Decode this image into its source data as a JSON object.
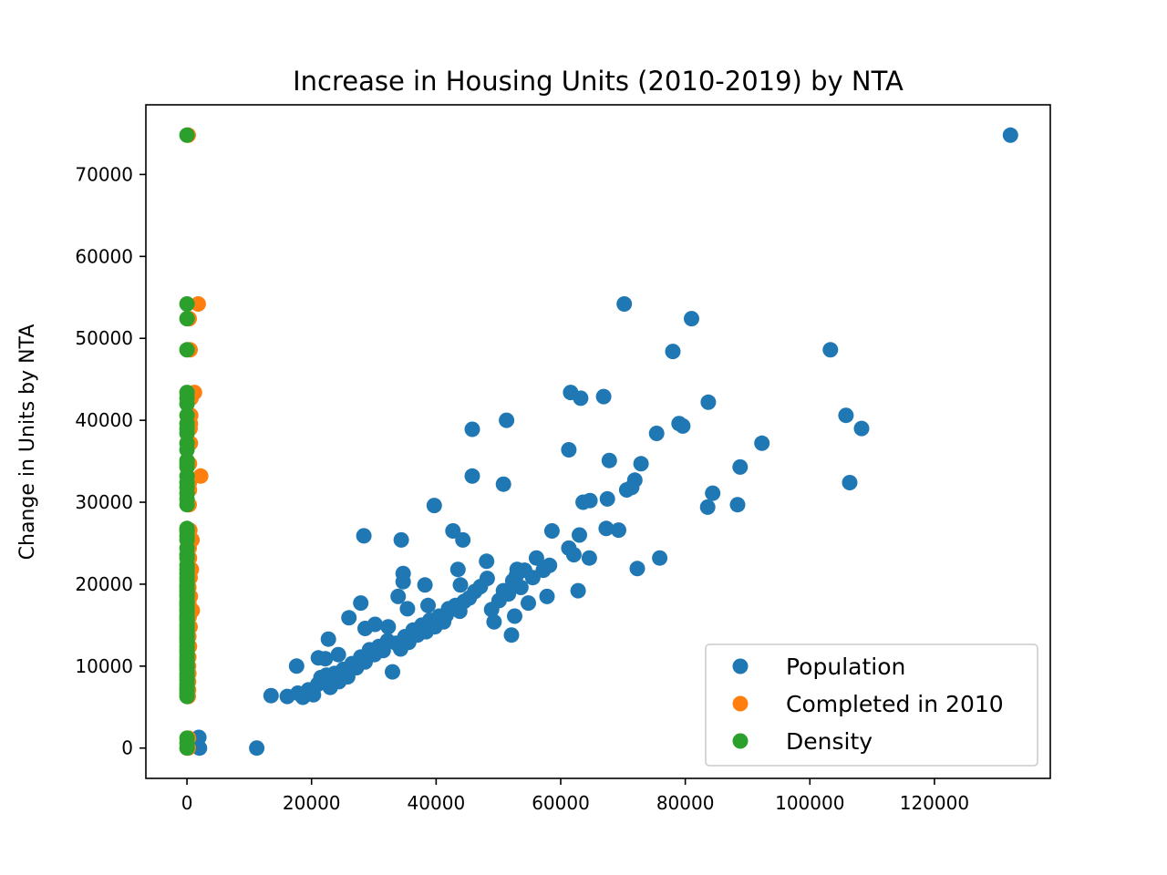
{
  "chart_data": {
    "type": "scatter",
    "title": "Increase in Housing Units (2010-2019) by NTA",
    "xlabel": "",
    "ylabel": "Change in Units by NTA",
    "xlim": [
      -6600,
      138600
    ],
    "ylim": [
      -3700,
      78500
    ],
    "x_ticks": [
      0,
      20000,
      40000,
      60000,
      80000,
      100000,
      120000
    ],
    "x_tick_labels": [
      "0",
      "20000",
      "40000",
      "60000",
      "80000",
      "100000",
      "120000"
    ],
    "y_ticks": [
      0,
      10000,
      20000,
      30000,
      40000,
      50000,
      60000,
      70000
    ],
    "y_tick_labels": [
      "0",
      "10000",
      "20000",
      "30000",
      "40000",
      "50000",
      "60000",
      "70000"
    ],
    "grid": false,
    "legend_position": "lower-right",
    "series": [
      {
        "name": "Population",
        "color": "#1f77b4",
        "points": [
          [
            132200,
            74800
          ],
          [
            11200,
            0
          ],
          [
            13500,
            6400
          ],
          [
            16100,
            6300
          ],
          [
            17800,
            6700
          ],
          [
            18600,
            6200
          ],
          [
            19500,
            7100
          ],
          [
            20300,
            6500
          ],
          [
            21000,
            7800
          ],
          [
            21500,
            8600
          ],
          [
            22400,
            8900
          ],
          [
            23000,
            7400
          ],
          [
            23700,
            9100
          ],
          [
            24400,
            8100
          ],
          [
            25100,
            9600
          ],
          [
            25800,
            8700
          ],
          [
            26500,
            10300
          ],
          [
            27200,
            9800
          ],
          [
            27900,
            11100
          ],
          [
            28600,
            10500
          ],
          [
            29300,
            12000
          ],
          [
            30100,
            11400
          ],
          [
            30800,
            12400
          ],
          [
            31500,
            11900
          ],
          [
            32200,
            13100
          ],
          [
            33000,
            9300
          ],
          [
            33600,
            12800
          ],
          [
            34300,
            12100
          ],
          [
            35000,
            13600
          ],
          [
            35600,
            12900
          ],
          [
            36300,
            14400
          ],
          [
            37000,
            13800
          ],
          [
            37700,
            15000
          ],
          [
            38400,
            14200
          ],
          [
            39000,
            15600
          ],
          [
            39800,
            14800
          ],
          [
            40500,
            16100
          ],
          [
            41200,
            15400
          ],
          [
            42000,
            17000
          ],
          [
            43100,
            17400
          ],
          [
            43800,
            16700
          ],
          [
            44500,
            17900
          ],
          [
            45300,
            18300
          ],
          [
            46200,
            19100
          ],
          [
            47100,
            19700
          ],
          [
            48200,
            20700
          ],
          [
            48900,
            16900
          ],
          [
            49300,
            15400
          ],
          [
            50100,
            18000
          ],
          [
            50800,
            19200
          ],
          [
            51600,
            18800
          ],
          [
            52300,
            20400
          ],
          [
            52900,
            21100
          ],
          [
            53600,
            19600
          ],
          [
            54200,
            21700
          ],
          [
            54800,
            17700
          ],
          [
            55500,
            20800
          ],
          [
            56100,
            23200
          ],
          [
            57200,
            21700
          ],
          [
            57800,
            18500
          ],
          [
            58200,
            22300
          ],
          [
            58600,
            26500
          ],
          [
            61300,
            24400
          ],
          [
            62100,
            23600
          ],
          [
            62800,
            19200
          ],
          [
            63000,
            26000
          ],
          [
            63600,
            30000
          ],
          [
            64600,
            23200
          ],
          [
            64700,
            30200
          ],
          [
            67300,
            26800
          ],
          [
            67500,
            30400
          ],
          [
            67800,
            35100
          ],
          [
            69300,
            26600
          ],
          [
            70600,
            31500
          ],
          [
            71400,
            31800
          ],
          [
            71900,
            32700
          ],
          [
            72300,
            21900
          ],
          [
            72900,
            34700
          ],
          [
            75400,
            38400
          ],
          [
            75900,
            23200
          ],
          [
            78000,
            48400
          ],
          [
            79000,
            39600
          ],
          [
            79600,
            39300
          ],
          [
            81000,
            52400
          ],
          [
            83700,
            42200
          ],
          [
            83600,
            29400
          ],
          [
            84400,
            31100
          ],
          [
            88400,
            29700
          ],
          [
            88800,
            34300
          ],
          [
            92300,
            37200
          ],
          [
            103300,
            48600
          ],
          [
            105800,
            40600
          ],
          [
            106400,
            32400
          ],
          [
            108300,
            39000
          ],
          [
            61600,
            43400
          ],
          [
            63200,
            42700
          ],
          [
            66900,
            42900
          ],
          [
            61300,
            36400
          ],
          [
            70200,
            54200
          ],
          [
            45800,
            38900
          ],
          [
            51300,
            40000
          ],
          [
            50800,
            32200
          ],
          [
            45800,
            33200
          ],
          [
            39700,
            29600
          ],
          [
            42700,
            26500
          ],
          [
            44300,
            25400
          ],
          [
            34400,
            25400
          ],
          [
            28400,
            25900
          ],
          [
            34700,
            21300
          ],
          [
            34700,
            20300
          ],
          [
            38200,
            19900
          ],
          [
            43500,
            21800
          ],
          [
            43900,
            19900
          ],
          [
            48100,
            22800
          ],
          [
            53000,
            21800
          ],
          [
            27900,
            17700
          ],
          [
            26000,
            15900
          ],
          [
            22700,
            13300
          ],
          [
            17600,
            10000
          ],
          [
            21100,
            11000
          ],
          [
            22200,
            10900
          ],
          [
            24300,
            11400
          ],
          [
            28600,
            14600
          ],
          [
            30200,
            15100
          ],
          [
            32300,
            14800
          ],
          [
            33900,
            18500
          ],
          [
            35400,
            17000
          ],
          [
            38700,
            17400
          ],
          [
            41600,
            16200
          ],
          [
            1900,
            1300
          ],
          [
            2000,
            0
          ],
          [
            52100,
            13800
          ],
          [
            52600,
            16100
          ]
        ]
      },
      {
        "name": "Completed in 2010",
        "color": "#ff7f0e",
        "points": [
          [
            200,
            74800
          ],
          [
            1800,
            54200
          ],
          [
            350,
            52400
          ],
          [
            500,
            48600
          ],
          [
            1200,
            43400
          ],
          [
            650,
            42700
          ],
          [
            600,
            40600
          ],
          [
            550,
            39600
          ],
          [
            500,
            39000
          ],
          [
            550,
            37200
          ],
          [
            400,
            34700
          ],
          [
            2200,
            33200
          ],
          [
            400,
            32400
          ],
          [
            400,
            31500
          ],
          [
            350,
            29700
          ],
          [
            450,
            26600
          ],
          [
            800,
            25400
          ],
          [
            350,
            24400
          ],
          [
            400,
            23200
          ],
          [
            700,
            21800
          ],
          [
            500,
            20800
          ],
          [
            300,
            19600
          ],
          [
            550,
            18500
          ],
          [
            300,
            17700
          ],
          [
            850,
            16800
          ],
          [
            350,
            16000
          ],
          [
            500,
            14800
          ],
          [
            300,
            13600
          ],
          [
            400,
            12400
          ],
          [
            300,
            11100
          ],
          [
            250,
            10000
          ],
          [
            300,
            9100
          ],
          [
            250,
            8100
          ],
          [
            250,
            7100
          ],
          [
            200,
            6300
          ],
          [
            250,
            1200
          ],
          [
            200,
            0
          ]
        ]
      },
      {
        "name": "Density",
        "color": "#2ca02c",
        "points": [
          [
            0,
            74800
          ],
          [
            0,
            54200
          ],
          [
            0,
            52400
          ],
          [
            0,
            48600
          ],
          [
            0,
            43400
          ],
          [
            0,
            42700
          ],
          [
            0,
            42000
          ],
          [
            0,
            40600
          ],
          [
            0,
            39600
          ],
          [
            0,
            39000
          ],
          [
            0,
            38400
          ],
          [
            0,
            37200
          ],
          [
            0,
            36400
          ],
          [
            0,
            35100
          ],
          [
            0,
            34700
          ],
          [
            0,
            34300
          ],
          [
            0,
            33200
          ],
          [
            0,
            32400
          ],
          [
            0,
            31800
          ],
          [
            0,
            31100
          ],
          [
            0,
            30400
          ],
          [
            0,
            29700
          ],
          [
            0,
            26800
          ],
          [
            0,
            26500
          ],
          [
            0,
            25900
          ],
          [
            0,
            25400
          ],
          [
            0,
            24400
          ],
          [
            0,
            23600
          ],
          [
            0,
            23200
          ],
          [
            0,
            22300
          ],
          [
            0,
            21800
          ],
          [
            0,
            21300
          ],
          [
            0,
            20800
          ],
          [
            0,
            20400
          ],
          [
            0,
            19900
          ],
          [
            0,
            19600
          ],
          [
            0,
            19200
          ],
          [
            0,
            18800
          ],
          [
            0,
            18500
          ],
          [
            0,
            18000
          ],
          [
            0,
            17700
          ],
          [
            0,
            17400
          ],
          [
            0,
            17000
          ],
          [
            0,
            16700
          ],
          [
            0,
            16200
          ],
          [
            0,
            15900
          ],
          [
            0,
            15600
          ],
          [
            0,
            15100
          ],
          [
            0,
            14800
          ],
          [
            0,
            14400
          ],
          [
            0,
            14000
          ],
          [
            0,
            13600
          ],
          [
            0,
            13300
          ],
          [
            0,
            12900
          ],
          [
            0,
            12400
          ],
          [
            0,
            12000
          ],
          [
            0,
            11600
          ],
          [
            0,
            11100
          ],
          [
            0,
            10700
          ],
          [
            0,
            10300
          ],
          [
            0,
            10000
          ],
          [
            0,
            9600
          ],
          [
            0,
            9100
          ],
          [
            0,
            8700
          ],
          [
            0,
            8300
          ],
          [
            0,
            7800
          ],
          [
            0,
            7400
          ],
          [
            0,
            7100
          ],
          [
            0,
            6700
          ],
          [
            0,
            6300
          ],
          [
            0,
            1200
          ],
          [
            0,
            600
          ],
          [
            0,
            0
          ]
        ]
      }
    ]
  }
}
